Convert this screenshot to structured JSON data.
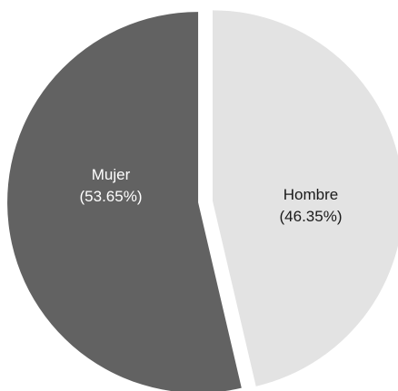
{
  "chart_data": {
    "type": "pie",
    "slices": [
      {
        "name": "Mujer",
        "percent_label": "(53.65%)",
        "value": 53.65,
        "color": "#626262",
        "text_color": "#ffffff"
      },
      {
        "name": "Hombre",
        "percent_label": "(46.35%)",
        "value": 46.35,
        "color": "#e3e3e3",
        "text_color": "#1a1a1a"
      }
    ],
    "start_angle_deg": 0,
    "direction": "counterclockwise",
    "exploded": true,
    "background": "#ffffff"
  }
}
